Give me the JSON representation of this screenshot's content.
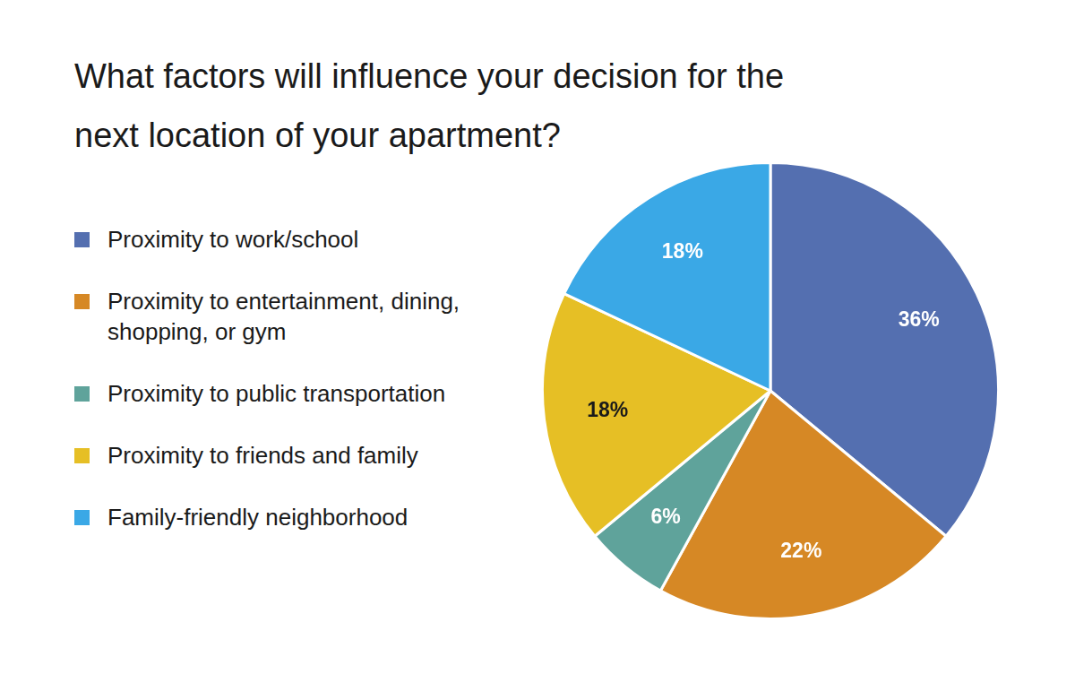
{
  "chart_data": {
    "type": "pie",
    "title": "What factors will influence your decision for the next location of your apartment?",
    "categories": [
      "Proximity to work/school",
      "Proximity to entertainment, dining, shopping, or gym",
      "Proximity to public transportation",
      "Proximity to friends and family",
      "Family-friendly neighborhood"
    ],
    "values": [
      36,
      22,
      6,
      18,
      18
    ],
    "value_labels": [
      "36%",
      "22%",
      "6%",
      "18%",
      "18%"
    ],
    "colors": [
      "#546fb0",
      "#d68825",
      "#5fa39b",
      "#e6bf25",
      "#3aa8e6"
    ],
    "legend": "left",
    "data_labels": true
  }
}
